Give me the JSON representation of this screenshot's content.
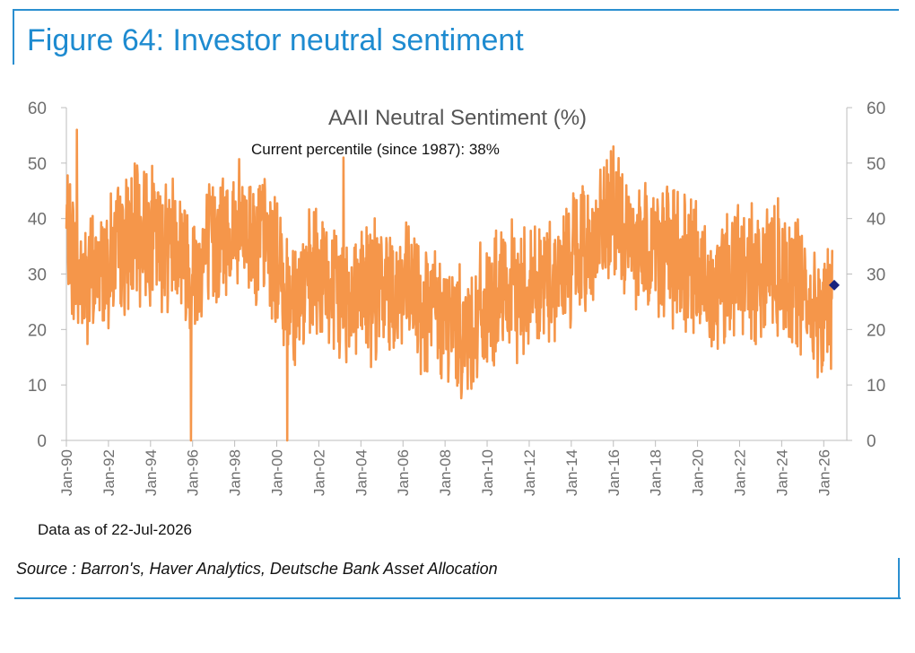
{
  "figure": {
    "title": "Figure 64: Investor neutral sentiment",
    "data_as_of": "Data as of 22-Jul-2026",
    "source": "Source : Barron's, Haver Analytics, Deutsche Bank Asset Allocation"
  },
  "colors": {
    "frame": "#2b8fd0",
    "title": "#1e8bd0",
    "line": "#f5964a",
    "marker": "#1a237e",
    "axis": "#bdbdbd"
  },
  "chart_data": {
    "type": "line",
    "title": "AAII Neutral Sentiment (%)",
    "annotation": "Current percentile (since 1987): 38%",
    "xlabel": "",
    "ylabel": "",
    "ylim": [
      0,
      60
    ],
    "xlim": [
      "Jan-90",
      "Jul-26"
    ],
    "y_ticks": [
      "0",
      "10",
      "20",
      "30",
      "40",
      "50",
      "60"
    ],
    "x_ticks": [
      "Jan-90",
      "Jan-92",
      "Jan-94",
      "Jan-96",
      "Jan-98",
      "Jan-00",
      "Jan-02",
      "Jan-04",
      "Jan-06",
      "Jan-08",
      "Jan-10",
      "Jan-12",
      "Jan-14",
      "Jan-16",
      "Jan-18",
      "Jan-20",
      "Jan-22",
      "Jan-24",
      "Jan-26"
    ],
    "series": [
      {
        "name": "",
        "approx_monthly_level": {
          "x": [
            "Jan-90",
            "Jul-90",
            "Jan-91",
            "Jul-91",
            "Jan-92",
            "Jul-92",
            "Jan-93",
            "Jul-93",
            "Jan-94",
            "Jul-94",
            "Jan-95",
            "Jul-95",
            "Jan-96",
            "Jul-96",
            "Jan-97",
            "Jul-97",
            "Jan-98",
            "Jul-98",
            "Jan-99",
            "Jul-99",
            "Jan-00",
            "Jul-00",
            "Jan-01",
            "Jul-01",
            "Jan-02",
            "Jul-02",
            "Jan-03",
            "Jul-03",
            "Jan-04",
            "Jul-04",
            "Jan-05",
            "Jul-05",
            "Jan-06",
            "Jul-06",
            "Jan-07",
            "Jul-07",
            "Jan-08",
            "Jul-08",
            "Jan-09",
            "Jul-09",
            "Jan-10",
            "Jul-10",
            "Jan-11",
            "Jul-11",
            "Jan-12",
            "Jul-12",
            "Jan-13",
            "Jul-13",
            "Jan-14",
            "Jul-14",
            "Jan-15",
            "Jul-15",
            "Jan-16",
            "Jul-16",
            "Jan-17",
            "Jul-17",
            "Jan-18",
            "Jul-18",
            "Jan-19",
            "Jul-19",
            "Jan-20",
            "Jul-20",
            "Jan-21",
            "Jul-21",
            "Jan-22",
            "Jul-22",
            "Jan-23",
            "Jul-23",
            "Jan-24",
            "Jul-24",
            "Jan-25",
            "Jul-25",
            "Jan-26",
            "Jul-26"
          ],
          "y": [
            38,
            30,
            28,
            31,
            33,
            34,
            36,
            37,
            38,
            35,
            37,
            35,
            30,
            33,
            36,
            37,
            38,
            37,
            37,
            36,
            31,
            27,
            26,
            28,
            30,
            28,
            25,
            27,
            28,
            27,
            27,
            28,
            27,
            26,
            24,
            23,
            22,
            21,
            19,
            22,
            23,
            25,
            26,
            27,
            28,
            28,
            29,
            30,
            33,
            34,
            36,
            38,
            40,
            37,
            36,
            35,
            35,
            34,
            33,
            32,
            30,
            28,
            29,
            30,
            31,
            30,
            31,
            32,
            30,
            29,
            26,
            24,
            23,
            27
          ]
        },
        "notable_spikes": {
          "x": [
            "Jul-90",
            "Dec-95",
            "Jul-00",
            "Mar-03",
            "Jan-16"
          ],
          "y": [
            56,
            0,
            0,
            51,
            53
          ]
        }
      },
      {
        "name": "",
        "points": [
          {
            "x": "Jul-26",
            "y": 28
          }
        ]
      }
    ]
  }
}
